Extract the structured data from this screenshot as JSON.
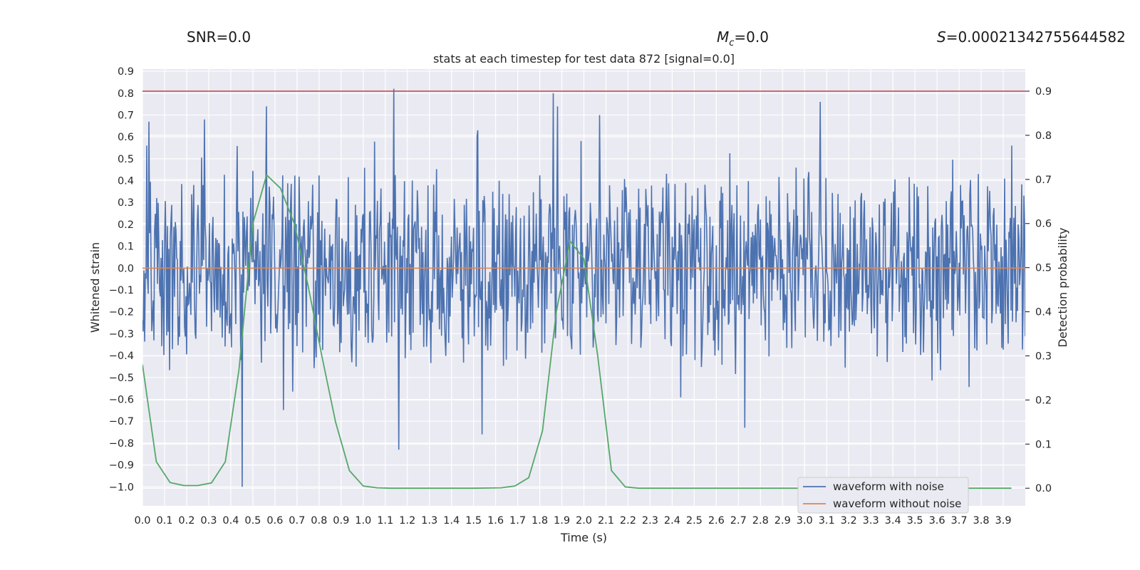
{
  "header": {
    "snr": "SNR=0.0",
    "mc_symbol": "M",
    "mc_sub": "c",
    "mc_value": "=0.0",
    "s_symbol": "S",
    "s_value": "=0.00021342755644582"
  },
  "chart_data": {
    "type": "line",
    "title": "stats at each timestep for test data 872 [signal=0.0]",
    "xlabel": "Time (s)",
    "ylabel": "Whitened strain",
    "ylabel_right": "Detection probability",
    "xlim": [
      0.0,
      4.0
    ],
    "ylim": [
      -1.087,
      0.91
    ],
    "ylim_right": [
      -0.04,
      0.95
    ],
    "x_ticks": [
      "0.0",
      "0.1",
      "0.2",
      "0.3",
      "0.4",
      "0.5",
      "0.6",
      "0.7",
      "0.8",
      "0.9",
      "1.0",
      "1.1",
      "1.2",
      "1.3",
      "1.4",
      "1.5",
      "1.6",
      "1.7",
      "1.8",
      "1.9",
      "2.0",
      "2.1",
      "2.2",
      "2.3",
      "2.4",
      "2.5",
      "2.6",
      "2.7",
      "2.8",
      "2.9",
      "3.0",
      "3.1",
      "3.2",
      "3.3",
      "3.4",
      "3.5",
      "3.6",
      "3.7",
      "3.8",
      "3.9"
    ],
    "y_ticks": [
      "0.9",
      "0.8",
      "0.7",
      "0.6",
      "0.5",
      "0.4",
      "0.3",
      "0.2",
      "0.1",
      "0.0",
      "−0.1",
      "−0.2",
      "−0.3",
      "−0.4",
      "−0.5",
      "−0.6",
      "−0.7",
      "−0.8",
      "−0.9",
      "−1.0"
    ],
    "y_right_ticks": [
      "0.9",
      "0.8",
      "0.7",
      "0.6",
      "0.5",
      "0.4",
      "0.3",
      "0.2",
      "0.1",
      "0.0"
    ],
    "threshold": {
      "value": 0.9,
      "axis": "right",
      "color": "#c44e52"
    },
    "grid": true,
    "legend": {
      "position": "lower right"
    },
    "series": [
      {
        "name": "waveform with noise",
        "color": "#4c72b0",
        "axis": "left",
        "description": "dense whitened noise trace, amplitude mostly within [-0.45, 0.45], peaks near 0.82 at 1.14 s and -1.0 at 0.45 s",
        "peaks": [
          {
            "x": 0.02,
            "y": 0.56
          },
          {
            "x": 0.03,
            "y": 0.67
          },
          {
            "x": 0.28,
            "y": 0.68
          },
          {
            "x": 0.45,
            "y": -1.0
          },
          {
            "x": 0.56,
            "y": 0.74
          },
          {
            "x": 1.14,
            "y": 0.82
          },
          {
            "x": 1.16,
            "y": -0.83
          },
          {
            "x": 1.52,
            "y": 0.63
          },
          {
            "x": 1.54,
            "y": -0.76
          },
          {
            "x": 1.86,
            "y": 0.8
          },
          {
            "x": 1.88,
            "y": 0.74
          },
          {
            "x": 2.07,
            "y": 0.7
          },
          {
            "x": 2.73,
            "y": -0.73
          },
          {
            "x": 3.07,
            "y": 0.76
          },
          {
            "x": 3.94,
            "y": 0.56
          }
        ]
      },
      {
        "name": "waveform without noise",
        "color": "#dd8452",
        "axis": "left",
        "x": [
          0.0,
          4.0
        ],
        "y": [
          0.0,
          0.0
        ]
      },
      {
        "name": "",
        "color": "#55a868",
        "axis": "right",
        "x": [
          0.0,
          0.0625,
          0.125,
          0.1875,
          0.25,
          0.3125,
          0.375,
          0.4375,
          0.5,
          0.5625,
          0.625,
          0.6875,
          0.75,
          0.8125,
          0.875,
          0.9375,
          1.0,
          1.0625,
          1.125,
          1.25,
          1.5,
          1.625,
          1.6875,
          1.75,
          1.8125,
          1.875,
          1.9375,
          2.0,
          2.0625,
          2.125,
          2.1875,
          2.25,
          2.5,
          3.0,
          3.5,
          3.9375
        ],
        "y": [
          0.28,
          0.06,
          0.013,
          0.006,
          0.006,
          0.012,
          0.06,
          0.27,
          0.6,
          0.71,
          0.68,
          0.6,
          0.46,
          0.3,
          0.15,
          0.04,
          0.005,
          0.001,
          0.0,
          0.0,
          0.0,
          0.001,
          0.005,
          0.024,
          0.13,
          0.4,
          0.56,
          0.52,
          0.3,
          0.04,
          0.003,
          0.0,
          0.0,
          0.0,
          0.0,
          0.0
        ]
      }
    ]
  }
}
